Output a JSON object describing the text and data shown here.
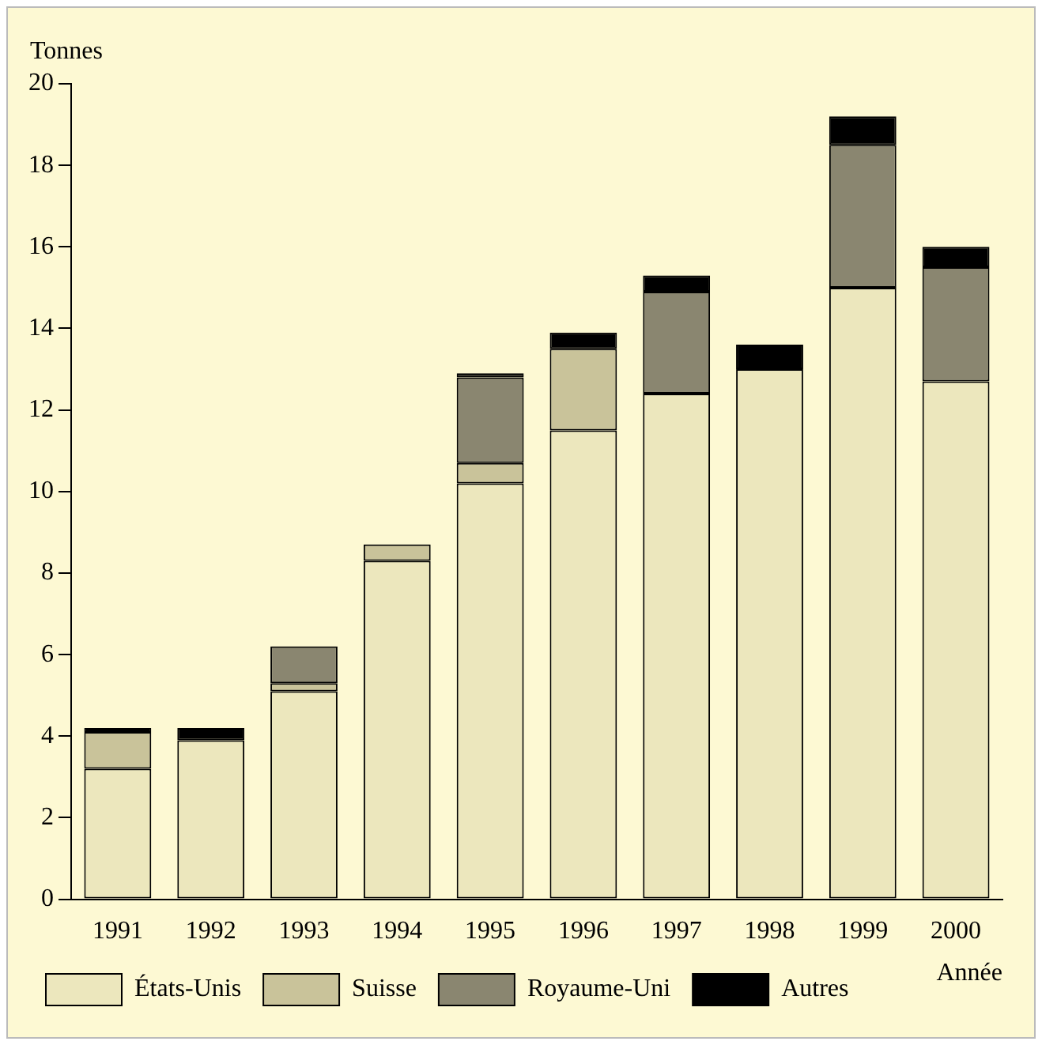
{
  "chart_data": {
    "type": "bar",
    "stacked": true,
    "ylabel": "Tonnes",
    "xlabel": "Année",
    "categories": [
      "1991",
      "1992",
      "1993",
      "1994",
      "1995",
      "1996",
      "1997",
      "1998",
      "1999",
      "2000"
    ],
    "series": [
      {
        "name": "États-Unis",
        "color": "#ece7bd",
        "values": [
          3.2,
          3.9,
          5.1,
          8.3,
          10.2,
          11.5,
          12.4,
          13.0,
          15.0,
          12.7
        ]
      },
      {
        "name": "Suisse",
        "color": "#c9c39a",
        "values": [
          0.9,
          0,
          0.2,
          0.4,
          0.5,
          2.0,
          0,
          0,
          0,
          0
        ]
      },
      {
        "name": "Royaume-Uni",
        "color": "#8a8670",
        "values": [
          0,
          0,
          0.9,
          0,
          2.1,
          0,
          2.5,
          0,
          3.5,
          2.8
        ]
      },
      {
        "name": "Autres",
        "color": "#000000",
        "values": [
          0.1,
          0.3,
          0,
          0,
          0.1,
          0.4,
          0.4,
          0.6,
          0.7,
          0.5
        ]
      }
    ],
    "ylim": [
      0,
      20
    ],
    "yticks": [
      0,
      2,
      4,
      6,
      8,
      10,
      12,
      14,
      16,
      18,
      20
    ],
    "grid": false,
    "legend": "bottom"
  }
}
